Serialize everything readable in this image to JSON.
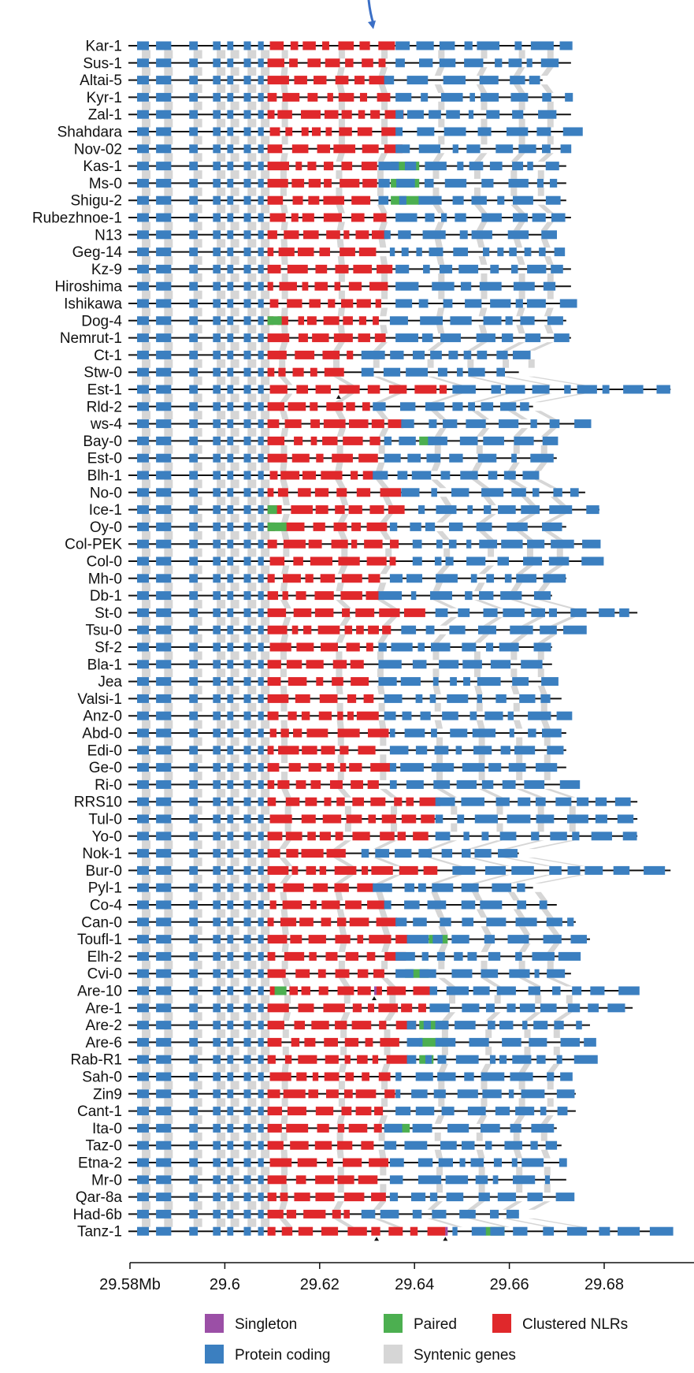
{
  "colors": {
    "singleton": "#9b4fa6",
    "paired": "#4caf50",
    "clustered": "#e0282b",
    "protein": "#3b7fc0",
    "syntenic": "#d6d6d6",
    "line": "#111111",
    "arrow": "#3b6fc6"
  },
  "accessions": [
    "Kar-1",
    "Sus-1",
    "Altai-5",
    "Kyr-1",
    "Zal-1",
    "Shahdara",
    "Nov-02",
    "Kas-1",
    "Ms-0",
    "Shigu-2",
    "Rubezhnoe-1",
    "N13",
    "Geg-14",
    "Kz-9",
    "Hiroshima",
    "Ishikawa",
    "Dog-4",
    "Nemrut-1",
    "Ct-1",
    "Stw-0",
    "Est-1",
    "Rld-2",
    "ws-4",
    "Bay-0",
    "Est-0",
    "Blh-1",
    "No-0",
    "Ice-1",
    "Oy-0",
    "Col-PEK",
    "Col-0",
    "Mh-0",
    "Db-1",
    "St-0",
    "Tsu-0",
    "Sf-2",
    "Bla-1",
    "Jea",
    "Valsi-1",
    "Anz-0",
    "Abd-0",
    "Edi-0",
    "Ge-0",
    "Ri-0",
    "RRS10",
    "Tul-0",
    "Yo-0",
    "Nok-1",
    "Bur-0",
    "Pyl-1",
    "Co-4",
    "Can-0",
    "Toufl-1",
    "Elh-2",
    "Cvi-0",
    "Are-10",
    "Are-1",
    "Are-2",
    "Are-6",
    "Rab-R1",
    "Sah-0",
    "Zin9",
    "Cant-1",
    "Ita-0",
    "Taz-0",
    "Etna-2",
    "Mr-0",
    "Qar-8a",
    "Had-6b",
    "Tanz-1"
  ],
  "line_end_mb": [
    29.673,
    29.673,
    29.667,
    29.673,
    29.673,
    29.673,
    29.673,
    29.672,
    29.672,
    29.672,
    29.673,
    29.669,
    29.671,
    29.673,
    29.673,
    29.673,
    29.672,
    29.673,
    29.662,
    29.662,
    29.694,
    29.665,
    29.676,
    29.67,
    29.67,
    29.665,
    29.676,
    29.679,
    29.672,
    29.678,
    29.677,
    29.672,
    29.669,
    29.687,
    29.675,
    29.669,
    29.669,
    29.669,
    29.671,
    29.671,
    29.672,
    29.672,
    29.672,
    29.672,
    29.687,
    29.687,
    29.687,
    29.662,
    29.694,
    29.665,
    29.67,
    29.674,
    29.677,
    29.673,
    29.673,
    29.686,
    29.686,
    29.677,
    29.677,
    29.677,
    29.673,
    29.674,
    29.674,
    29.67,
    29.671,
    29.672,
    29.672,
    29.672,
    29.662,
    29.694
  ],
  "axis": {
    "ticks": [
      29.58,
      29.6,
      29.62,
      29.64,
      29.66,
      29.68
    ],
    "tick_labels": [
      "29.58Mb",
      "29.6",
      "29.62",
      "29.64",
      "29.66",
      "29.68"
    ]
  },
  "legend": [
    {
      "label": "Singleton",
      "key": "singleton"
    },
    {
      "label": "Paired",
      "key": "paired"
    },
    {
      "label": "Clustered NLRs",
      "key": "clustered"
    },
    {
      "label": "Protein coding",
      "key": "protein"
    },
    {
      "label": "Syntenic genes",
      "key": "syntenic"
    }
  ]
}
